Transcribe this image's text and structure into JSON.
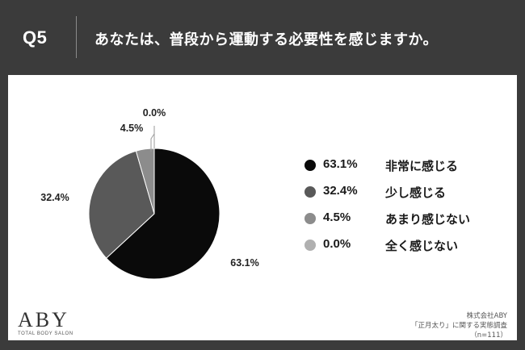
{
  "header": {
    "qnum": "Q5",
    "question": "あなたは、普段から運動する必要性を感じますか。"
  },
  "chart_data": {
    "type": "pie",
    "categories": [
      "非常に感じる",
      "少し感じる",
      "あまり感じない",
      "全く感じない"
    ],
    "values": [
      63.1,
      32.4,
      4.5,
      0.0
    ],
    "data_labels": [
      "63.1%",
      "32.4%",
      "4.5%",
      "0.0%"
    ],
    "colors": [
      "#0a0a0a",
      "#595959",
      "#8c8c8c",
      "#b0b0b0"
    ],
    "legend_position": "right"
  },
  "legend": [
    {
      "pct": "63.1%",
      "label": "非常に感じる",
      "color": "#0a0a0a"
    },
    {
      "pct": "32.4%",
      "label": "少し感じる",
      "color": "#595959"
    },
    {
      "pct": "4.5%",
      "label": "あまり感じない",
      "color": "#8c8c8c"
    },
    {
      "pct": "0.0%",
      "label": "全く感じない",
      "color": "#b0b0b0"
    }
  ],
  "footer": {
    "logo": "ABY",
    "logo_sub": "TOTAL BODY SALON",
    "source_company": "株式会社ABY",
    "source_survey": "「正月太り」に関する実態調査",
    "source_n": "（n=111）"
  }
}
